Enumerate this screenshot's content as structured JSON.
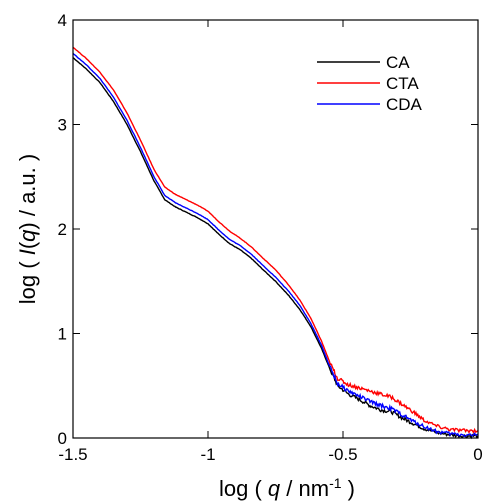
{
  "chart_data": {
    "type": "line",
    "title": "",
    "xlabel": {
      "prefix": "log ( ",
      "var": "q",
      "mid": " / nm",
      "sup": "-1",
      "suffix": " )"
    },
    "ylabel": {
      "prefix": "log ( ",
      "var": "I",
      "paren_open": "(",
      "var2": "q",
      "paren_close": ")",
      "suffix": " / a.u. )"
    },
    "xlim": [
      -1.5,
      0
    ],
    "ylim": [
      0,
      4
    ],
    "x_ticks": [
      -1.5,
      -1,
      -0.5,
      0
    ],
    "x_tick_labels": [
      "-1.5",
      "-1",
      "-0.5",
      "0"
    ],
    "y_ticks": [
      0,
      1,
      2,
      3,
      4
    ],
    "y_tick_labels": [
      "0",
      "1",
      "2",
      "3",
      "4"
    ],
    "grid": false,
    "legend_position": "top-right",
    "series": [
      {
        "name": "CA",
        "color": "#000000",
        "points": [
          [
            -1.5,
            3.64
          ],
          [
            -1.45,
            3.53
          ],
          [
            -1.4,
            3.4
          ],
          [
            -1.35,
            3.22
          ],
          [
            -1.3,
            3.0
          ],
          [
            -1.25,
            2.74
          ],
          [
            -1.2,
            2.46
          ],
          [
            -1.16,
            2.28
          ],
          [
            -1.12,
            2.21
          ],
          [
            -1.08,
            2.16
          ],
          [
            -1.04,
            2.11
          ],
          [
            -1.0,
            2.05
          ],
          [
            -0.96,
            1.95
          ],
          [
            -0.92,
            1.86
          ],
          [
            -0.88,
            1.8
          ],
          [
            -0.84,
            1.72
          ],
          [
            -0.8,
            1.62
          ],
          [
            -0.75,
            1.5
          ],
          [
            -0.7,
            1.36
          ],
          [
            -0.66,
            1.23
          ],
          [
            -0.62,
            1.07
          ],
          [
            -0.58,
            0.86
          ],
          [
            -0.55,
            0.67
          ],
          [
            -0.52,
            0.5
          ],
          [
            -0.48,
            0.42
          ],
          [
            -0.44,
            0.37
          ],
          [
            -0.4,
            0.31
          ],
          [
            -0.36,
            0.27
          ],
          [
            -0.32,
            0.25
          ],
          [
            -0.28,
            0.19
          ],
          [
            -0.24,
            0.14
          ],
          [
            -0.2,
            0.09
          ],
          [
            -0.15,
            0.05
          ],
          [
            -0.1,
            0.03
          ],
          [
            -0.05,
            0.02
          ],
          [
            0.0,
            0.02
          ]
        ]
      },
      {
        "name": "CTA",
        "color": "#ff0000",
        "points": [
          [
            -1.5,
            3.74
          ],
          [
            -1.45,
            3.63
          ],
          [
            -1.4,
            3.5
          ],
          [
            -1.35,
            3.33
          ],
          [
            -1.3,
            3.11
          ],
          [
            -1.25,
            2.85
          ],
          [
            -1.2,
            2.57
          ],
          [
            -1.16,
            2.4
          ],
          [
            -1.12,
            2.33
          ],
          [
            -1.08,
            2.28
          ],
          [
            -1.04,
            2.23
          ],
          [
            -1.0,
            2.17
          ],
          [
            -0.96,
            2.07
          ],
          [
            -0.92,
            1.98
          ],
          [
            -0.88,
            1.91
          ],
          [
            -0.84,
            1.83
          ],
          [
            -0.8,
            1.73
          ],
          [
            -0.75,
            1.61
          ],
          [
            -0.7,
            1.46
          ],
          [
            -0.66,
            1.32
          ],
          [
            -0.62,
            1.15
          ],
          [
            -0.58,
            0.93
          ],
          [
            -0.55,
            0.73
          ],
          [
            -0.52,
            0.57
          ],
          [
            -0.48,
            0.51
          ],
          [
            -0.44,
            0.48
          ],
          [
            -0.4,
            0.45
          ],
          [
            -0.36,
            0.42
          ],
          [
            -0.32,
            0.39
          ],
          [
            -0.28,
            0.32
          ],
          [
            -0.24,
            0.25
          ],
          [
            -0.2,
            0.17
          ],
          [
            -0.15,
            0.11
          ],
          [
            -0.1,
            0.08
          ],
          [
            -0.05,
            0.07
          ],
          [
            0.0,
            0.07
          ]
        ]
      },
      {
        "name": "CDA",
        "color": "#0000ff",
        "points": [
          [
            -1.5,
            3.68
          ],
          [
            -1.45,
            3.57
          ],
          [
            -1.4,
            3.44
          ],
          [
            -1.35,
            3.26
          ],
          [
            -1.3,
            3.04
          ],
          [
            -1.25,
            2.78
          ],
          [
            -1.2,
            2.5
          ],
          [
            -1.16,
            2.32
          ],
          [
            -1.12,
            2.25
          ],
          [
            -1.08,
            2.2
          ],
          [
            -1.04,
            2.15
          ],
          [
            -1.0,
            2.09
          ],
          [
            -0.96,
            1.99
          ],
          [
            -0.92,
            1.9
          ],
          [
            -0.88,
            1.84
          ],
          [
            -0.84,
            1.76
          ],
          [
            -0.8,
            1.66
          ],
          [
            -0.75,
            1.54
          ],
          [
            -0.7,
            1.4
          ],
          [
            -0.66,
            1.27
          ],
          [
            -0.62,
            1.1
          ],
          [
            -0.58,
            0.89
          ],
          [
            -0.55,
            0.69
          ],
          [
            -0.52,
            0.52
          ],
          [
            -0.48,
            0.45
          ],
          [
            -0.44,
            0.4
          ],
          [
            -0.4,
            0.35
          ],
          [
            -0.36,
            0.31
          ],
          [
            -0.32,
            0.28
          ],
          [
            -0.28,
            0.22
          ],
          [
            -0.24,
            0.16
          ],
          [
            -0.2,
            0.11
          ],
          [
            -0.15,
            0.06
          ],
          [
            -0.1,
            0.04
          ],
          [
            -0.05,
            0.03
          ],
          [
            0.0,
            0.03
          ]
        ]
      }
    ]
  }
}
